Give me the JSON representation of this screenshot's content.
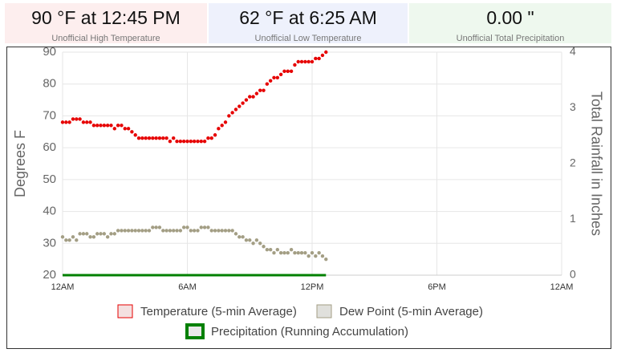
{
  "stats": [
    {
      "value": "90 °F at 12:45 PM",
      "label": "Unofficial High Temperature"
    },
    {
      "value": "62 °F at 6:25 AM",
      "label": "Unofficial Low Temperature"
    },
    {
      "value": "0.00 \"",
      "label": "Unofficial Total Precipitation"
    }
  ],
  "chart_data": {
    "type": "scatter",
    "ylabel": "Degrees F",
    "y2label": "Total Rainfall in Inches",
    "xlim": [
      0,
      1440
    ],
    "xticks": [
      {
        "value": 0,
        "label": "12AM"
      },
      {
        "value": 360,
        "label": "6AM"
      },
      {
        "value": 720,
        "label": "12PM"
      },
      {
        "value": 1080,
        "label": "6PM"
      },
      {
        "value": 1440,
        "label": "12AM"
      }
    ],
    "ylim": [
      20,
      90
    ],
    "yticks": [
      20,
      30,
      40,
      50,
      60,
      70,
      80,
      90
    ],
    "y2lim": [
      0,
      4
    ],
    "y2ticks": [
      0,
      1,
      2,
      3,
      4
    ],
    "grid": true,
    "x": [
      0,
      10,
      20,
      30,
      40,
      50,
      60,
      70,
      80,
      90,
      100,
      110,
      120,
      130,
      140,
      150,
      160,
      170,
      180,
      190,
      200,
      210,
      220,
      230,
      240,
      250,
      260,
      270,
      280,
      290,
      300,
      310,
      320,
      330,
      340,
      350,
      360,
      370,
      380,
      390,
      400,
      410,
      420,
      430,
      440,
      450,
      460,
      470,
      480,
      490,
      500,
      510,
      520,
      530,
      540,
      550,
      560,
      570,
      580,
      590,
      600,
      610,
      620,
      630,
      640,
      650,
      660,
      670,
      680,
      690,
      700,
      710,
      720,
      730,
      740,
      750,
      760
    ],
    "series": [
      {
        "name": "Temperature (5-min Average)",
        "color": "#e60000",
        "legend_fill": "#f4e0e0",
        "values": [
          68,
          68,
          68,
          69,
          69,
          69,
          68,
          68,
          68,
          67,
          67,
          67,
          67,
          67,
          67,
          66,
          67,
          67,
          66,
          66,
          65,
          64,
          63,
          63,
          63,
          63,
          63,
          63,
          63,
          63,
          63,
          62,
          63,
          62,
          62,
          62,
          62,
          62,
          62,
          62,
          62,
          62,
          63,
          63,
          64,
          66,
          67,
          68,
          70,
          71,
          72,
          73,
          74,
          75,
          76,
          76,
          77,
          78,
          78,
          80,
          81,
          82,
          82,
          83,
          84,
          84,
          84,
          86,
          87,
          87,
          87,
          87,
          87,
          88,
          88,
          89,
          90
        ]
      },
      {
        "name": "Dew Point (5-min Average)",
        "color": "#a39e84",
        "legend_fill": "#e0e0dc",
        "values": [
          32,
          31,
          31,
          32,
          31,
          33,
          33,
          33,
          32,
          32,
          33,
          33,
          33,
          32,
          33,
          33,
          34,
          34,
          34,
          34,
          34,
          34,
          34,
          34,
          34,
          34,
          35,
          35,
          35,
          34,
          34,
          34,
          34,
          34,
          34,
          35,
          35,
          34,
          34,
          34,
          35,
          35,
          35,
          34,
          34,
          34,
          34,
          34,
          34,
          34,
          33,
          32,
          32,
          31,
          31,
          30,
          31,
          30,
          29,
          28,
          28,
          27,
          28,
          27,
          27,
          27,
          28,
          27,
          27,
          27,
          27,
          26,
          27,
          26,
          27,
          26,
          25
        ]
      },
      {
        "name": "Precipitation (Running Accumulation)",
        "color": "#008000",
        "axis": "y2",
        "legend_fill": "#e8e8e8",
        "values": [
          0,
          0,
          0,
          0,
          0,
          0,
          0,
          0,
          0,
          0,
          0,
          0,
          0,
          0,
          0,
          0,
          0,
          0,
          0,
          0,
          0,
          0,
          0,
          0,
          0,
          0,
          0,
          0,
          0,
          0,
          0,
          0,
          0,
          0,
          0,
          0,
          0,
          0,
          0,
          0,
          0,
          0,
          0,
          0,
          0,
          0,
          0,
          0,
          0,
          0,
          0,
          0,
          0,
          0,
          0,
          0,
          0,
          0,
          0,
          0,
          0,
          0,
          0,
          0,
          0,
          0,
          0,
          0,
          0,
          0,
          0,
          0,
          0,
          0,
          0,
          0,
          0
        ]
      }
    ]
  }
}
